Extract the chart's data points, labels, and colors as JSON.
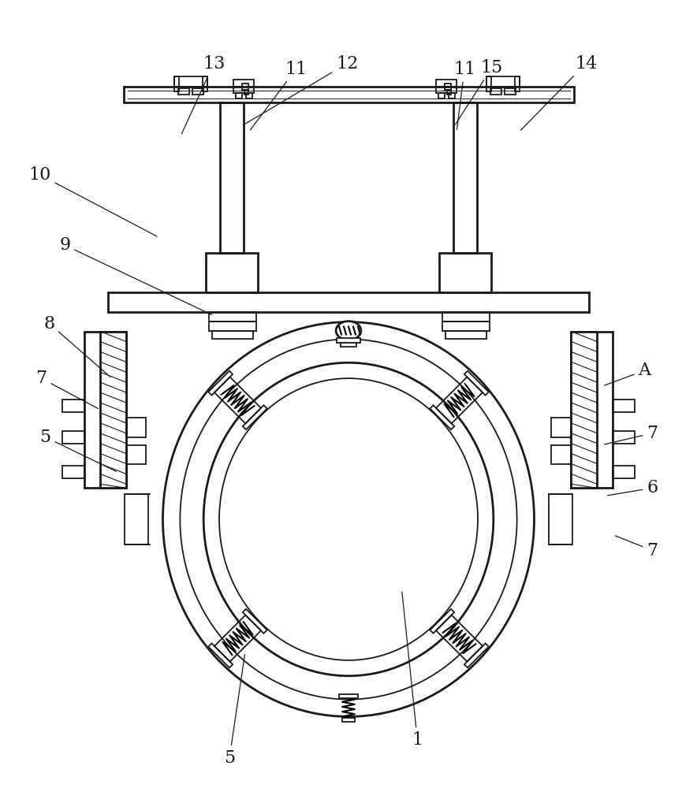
{
  "bg_color": "#ffffff",
  "lc": "#1a1a1a",
  "lw": 1.3,
  "lw2": 2.0,
  "fig_w": 8.84,
  "fig_h": 10.0,
  "annotations": [
    [
      "1",
      530,
      942,
      510,
      750
    ],
    [
      "5",
      290,
      965,
      310,
      830
    ],
    [
      "5",
      55,
      555,
      148,
      600
    ],
    [
      "6",
      830,
      620,
      770,
      630
    ],
    [
      "7",
      830,
      550,
      766,
      565
    ],
    [
      "7",
      50,
      480,
      125,
      520
    ],
    [
      "7",
      830,
      700,
      780,
      680
    ],
    [
      "8",
      60,
      410,
      140,
      480
    ],
    [
      "9",
      80,
      310,
      270,
      400
    ],
    [
      "10",
      48,
      220,
      200,
      300
    ],
    [
      "11",
      375,
      85,
      315,
      165
    ],
    [
      "11",
      590,
      85,
      580,
      165
    ],
    [
      "12",
      440,
      78,
      305,
      158
    ],
    [
      "13",
      270,
      78,
      228,
      170
    ],
    [
      "14",
      745,
      78,
      660,
      165
    ],
    [
      "15",
      625,
      83,
      577,
      158
    ],
    [
      "A",
      820,
      470,
      766,
      490
    ]
  ]
}
